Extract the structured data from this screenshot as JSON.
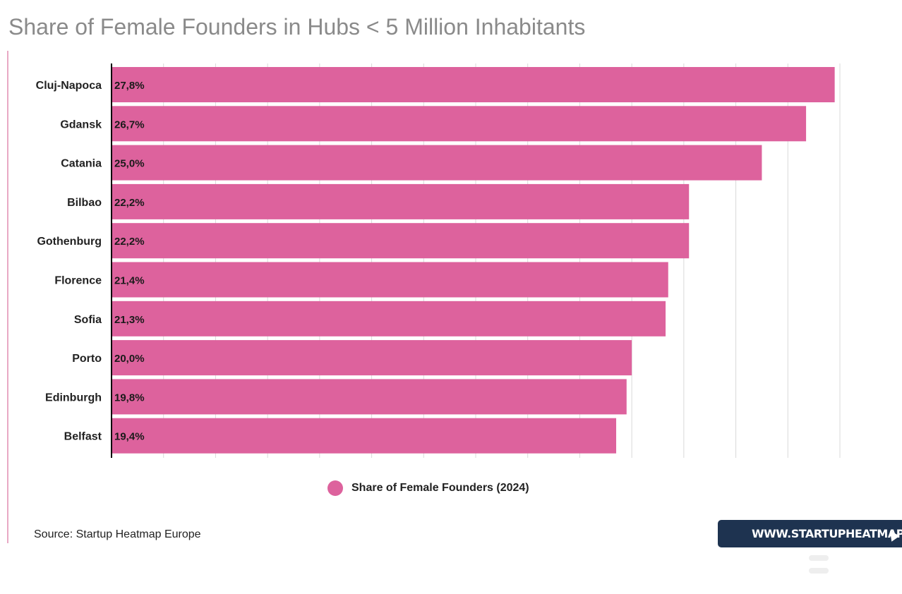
{
  "title": "Share of Female Founders in Hubs < 5 Million Inhabitants",
  "colors": {
    "bar": "#dd629d",
    "title": "#8a8a8a",
    "badge": "#1e3350",
    "grid": "#d9d9d9"
  },
  "chart_data": {
    "type": "bar",
    "orientation": "horizontal",
    "categories": [
      "Cluj-Napoca",
      "Gdansk",
      "Catania",
      "Bilbao",
      "Gothenburg",
      "Florence",
      "Sofia",
      "Porto",
      "Edinburgh",
      "Belfast"
    ],
    "values": [
      27.8,
      26.7,
      25.0,
      22.2,
      22.2,
      21.4,
      21.3,
      20.0,
      19.8,
      19.4
    ],
    "value_labels": [
      "27,8%",
      "26,7%",
      "25,0%",
      "22,2%",
      "22,2%",
      "21,4%",
      "21,3%",
      "20,0%",
      "19,8%",
      "19,4%"
    ],
    "series": [
      {
        "name": "Share of Female Founders (2024)",
        "values": [
          27.8,
          26.7,
          25.0,
          22.2,
          22.2,
          21.4,
          21.3,
          20.0,
          19.8,
          19.4
        ]
      }
    ],
    "xlim": [
      0,
      28
    ],
    "grid": true,
    "legend_position": "bottom-center"
  },
  "legend": {
    "label": "Share of Female Founders (2024)"
  },
  "source": "Source: Startup Heatmap Europe",
  "badge": {
    "text": "WWW.STARTUPHEATMAP.EU",
    "icon": "cursor-icon"
  }
}
